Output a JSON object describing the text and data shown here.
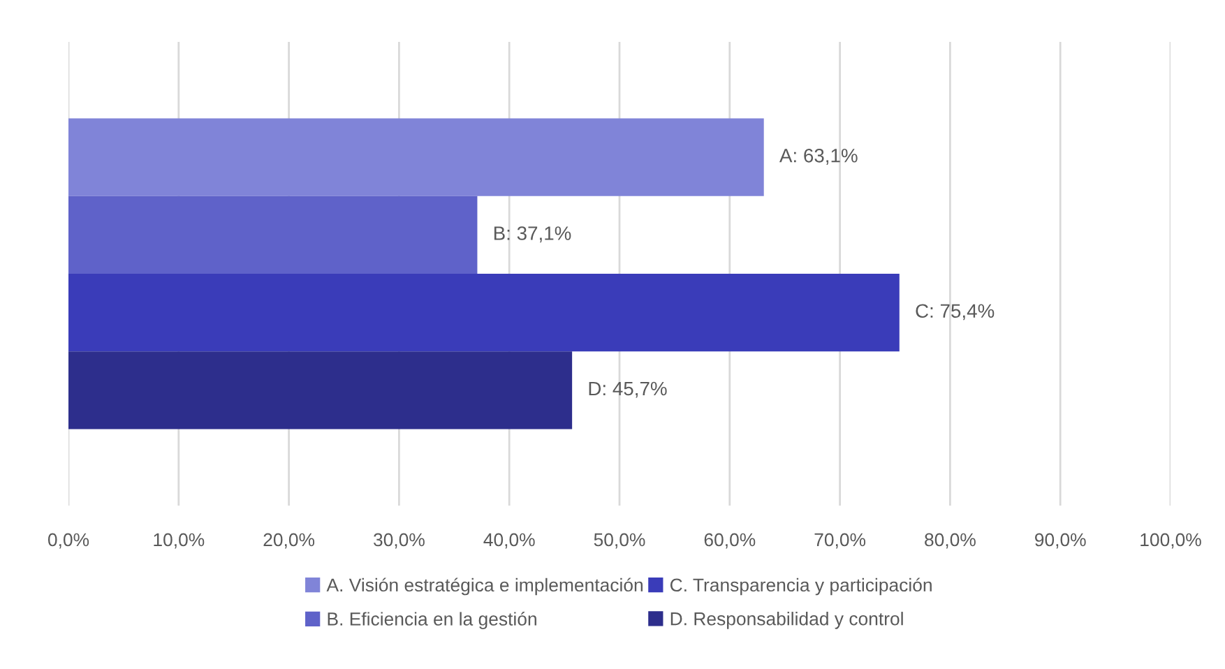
{
  "chart_data": {
    "type": "bar",
    "orientation": "horizontal",
    "categories": [
      null
    ],
    "series": [
      {
        "name": "A. Visión estratégica e implementación",
        "color": "#8084d8",
        "values": [
          63.1
        ],
        "value_labels": [
          "A: 63,1%"
        ]
      },
      {
        "name": "B. Eficiencia en la gestión",
        "color": "#5f62c9",
        "values": [
          37.1
        ],
        "value_labels": [
          "B: 37,1%"
        ]
      },
      {
        "name": "C. Transparencia y participación",
        "color": "#3a3cb9",
        "values": [
          75.4
        ],
        "value_labels": [
          "C: 75,4%"
        ]
      },
      {
        "name": "D. Responsabilidad y control",
        "color": "#2d2e8c",
        "values": [
          45.7
        ],
        "value_labels": [
          "D: 45,7%"
        ]
      }
    ],
    "xlim": [
      0,
      100
    ],
    "xticks": [
      {
        "value": 0,
        "label": "0,0%"
      },
      {
        "value": 10,
        "label": "10,0%"
      },
      {
        "value": 20,
        "label": "20,0%"
      },
      {
        "value": 30,
        "label": "30,0%"
      },
      {
        "value": 40,
        "label": "40,0%"
      },
      {
        "value": 50,
        "label": "50,0%"
      },
      {
        "value": 60,
        "label": "60,0%"
      },
      {
        "value": 70,
        "label": "70,0%"
      },
      {
        "value": 80,
        "label": "80,0%"
      },
      {
        "value": 90,
        "label": "90,0%"
      },
      {
        "value": 100,
        "label": "100,0%"
      }
    ],
    "grid": "x",
    "legend": "bottom"
  }
}
